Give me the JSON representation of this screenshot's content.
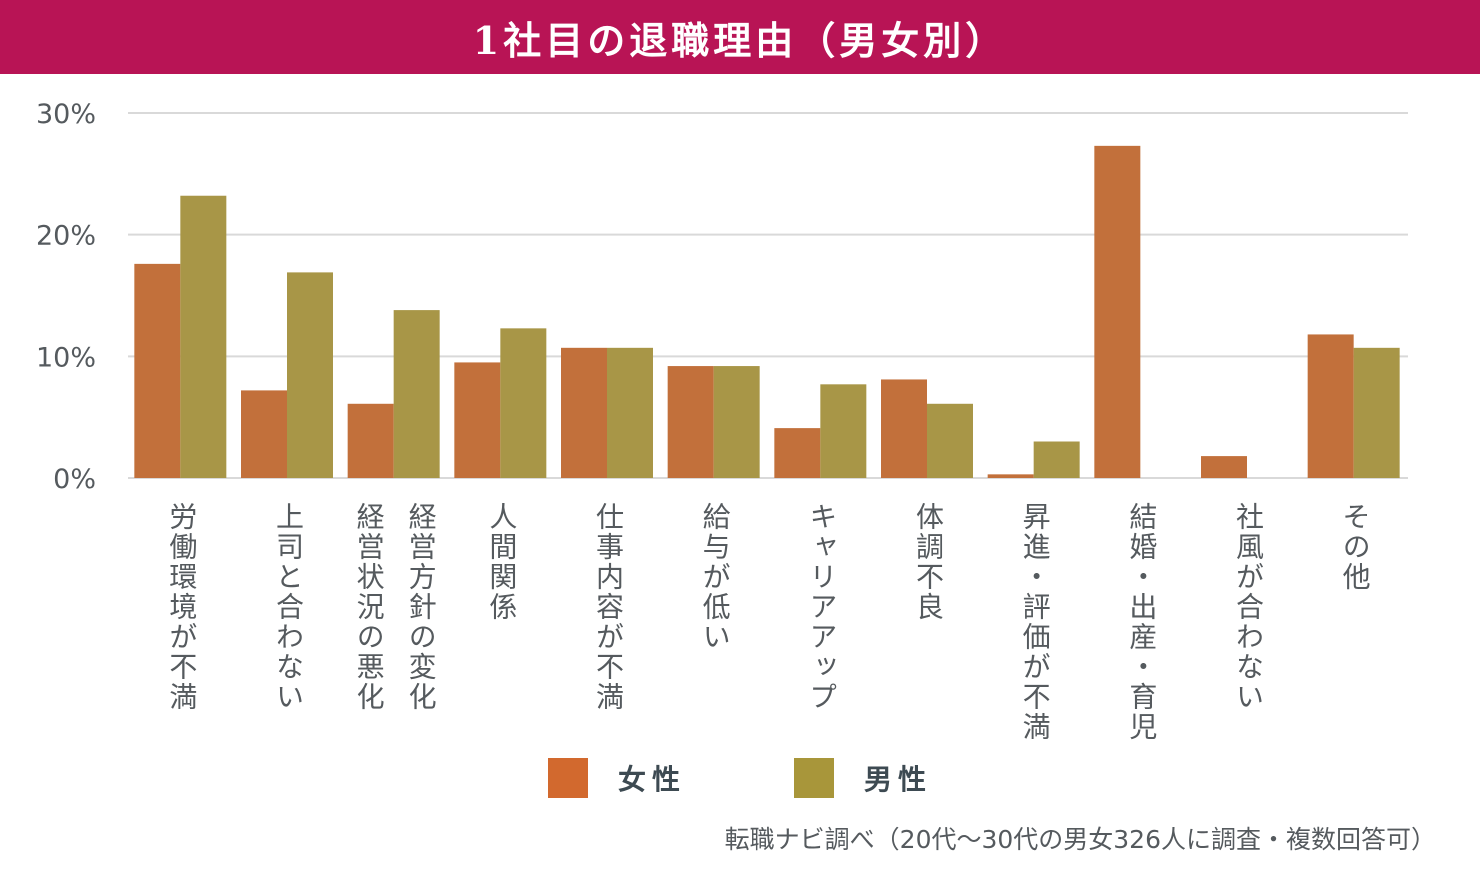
{
  "header": {
    "title": "1社目の退職理由（男女別）"
  },
  "colors": {
    "title_bg": "#b81455",
    "female": "#c2703b",
    "male": "#a89647",
    "grid": "#d9d9d9",
    "text": "#555a5e"
  },
  "legend": [
    {
      "label": "女性",
      "color": "#d2692e"
    },
    {
      "label": "男性",
      "color": "#a8963a"
    }
  ],
  "source": "転職ナビ調べ（20代〜30代の男女326人に調査・複数回答可）",
  "chart_data": {
    "type": "bar",
    "title": "1社目の退職理由（男女別）",
    "xlabel": "",
    "ylabel": "",
    "ylim": [
      0,
      30
    ],
    "yticks": [
      0,
      10,
      20,
      30
    ],
    "ytick_labels": [
      "0%",
      "10%",
      "20%",
      "30%"
    ],
    "grid": true,
    "legend_position": "bottom",
    "categories": [
      "労働環境が不満",
      "上司と合わない",
      "経営方針の変化 経営状況の悪化",
      "人間関係",
      "仕事内容が不満",
      "給与が低い",
      "キャリアアップ",
      "体調不良",
      "昇進・評価が不満",
      "結婚・出産・育児",
      "社風が合わない",
      "その他"
    ],
    "category_label_lines": [
      [
        "労働環境が不満"
      ],
      [
        "上司と合わない"
      ],
      [
        "経営方針の変化",
        "経営状況の悪化"
      ],
      [
        "人間関係"
      ],
      [
        "仕事内容が不満"
      ],
      [
        "給与が低い"
      ],
      [
        "キャリアアップ"
      ],
      [
        "体調不良"
      ],
      [
        "昇進・評価が不満"
      ],
      [
        "結婚・出産・育児"
      ],
      [
        "社風が合わない"
      ],
      [
        "その他"
      ]
    ],
    "series": [
      {
        "name": "女性",
        "values": [
          17.6,
          7.2,
          6.1,
          9.5,
          10.7,
          9.2,
          4.1,
          8.1,
          0.3,
          27.3,
          1.8,
          11.8
        ]
      },
      {
        "name": "男性",
        "values": [
          23.2,
          16.9,
          13.8,
          12.3,
          10.7,
          9.2,
          7.7,
          6.1,
          3.0,
          0,
          0,
          10.7
        ]
      }
    ]
  }
}
